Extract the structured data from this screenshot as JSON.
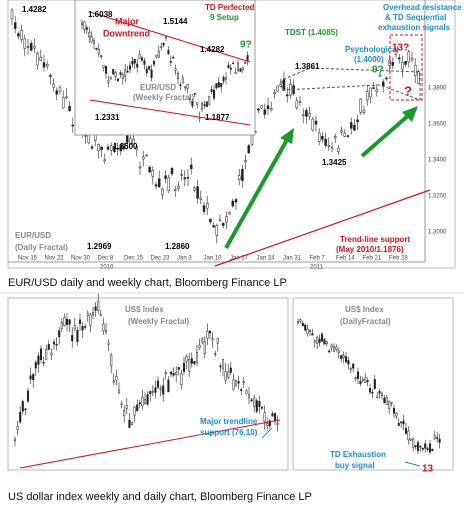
{
  "eurusd": {
    "caption": "EUR/USD daily and weekly chart, Bloomberg Finance LP",
    "daily": {
      "name": [
        "EUR/USD",
        "(Daily Fractal)"
      ],
      "levels": [
        "1.4282",
        "1.3500",
        "1.2969",
        "1.2860",
        "1.3861",
        "1.3425"
      ],
      "tdst": "TDST (1.4085)",
      "psych": [
        "Psychological",
        "(1.4000)"
      ],
      "overhead": [
        "Overhead resistance",
        "& TD Sequential",
        "exhaustion signals"
      ],
      "nine": "9?",
      "thirteen": "13?",
      "question": "?",
      "trend": [
        "Trend-line support",
        "(May 2010/1.1876)"
      ],
      "price_axis": [
        "1.3800",
        "1.3600",
        "1.3400",
        "1.3200",
        "1.3000"
      ],
      "dates": [
        "Nov 15",
        "Nov 22",
        "Nov 30",
        "Dec 8",
        "Dec 15",
        "Dec 23",
        "Jan 3",
        "Jan 10",
        "Jan 17",
        "Jan 24",
        "Jan 31",
        "Feb 7",
        "Feb 14",
        "Feb 21",
        "Feb 28"
      ],
      "years": [
        "2010",
        "2011"
      ]
    },
    "weekly": {
      "levels": [
        "1.6038",
        "1.5144",
        "1.4282",
        "1.2331",
        "1.1877"
      ],
      "downtrend": [
        "Major",
        "Downtrend"
      ],
      "perfected": [
        "TD Perfected",
        "9 Setup"
      ],
      "nine": "9?",
      "name": [
        "EUR/USD",
        "(Weekly Fractal)"
      ]
    }
  },
  "dxy": {
    "caption": "US dollar index weekly and daily chart, Bloomberg Finance LP",
    "weekly": {
      "name": [
        "US$ Index",
        "(Weekly Fractal)"
      ],
      "support": [
        "Major trendline",
        "support (76.10)"
      ]
    },
    "daily": {
      "name": [
        "US$ Index",
        "(DailyFractal)"
      ],
      "exhaustion": [
        "TD Exhaustion",
        "buy signal"
      ],
      "thirteen": "13"
    }
  }
}
